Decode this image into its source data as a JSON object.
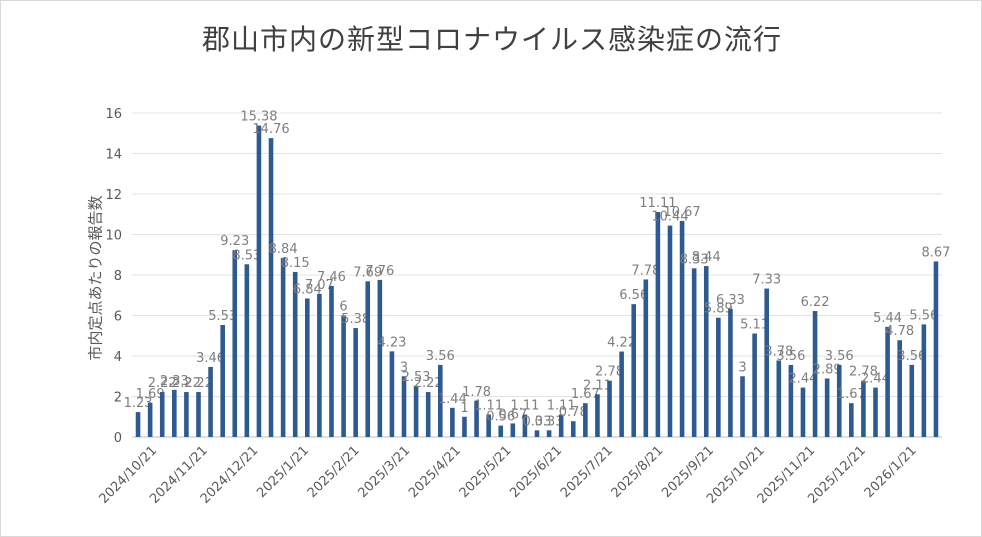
{
  "chart_data": {
    "type": "bar",
    "title": "郡山市内の新型コロナウイルス感染症の流行",
    "xlabel": "",
    "ylabel": "市内定点あたりの報告数",
    "ylim": [
      0,
      16
    ],
    "y_ticks": [
      0,
      2,
      4,
      6,
      8,
      10,
      12,
      14,
      16
    ],
    "grid": true,
    "bar_color": "#2e5a92",
    "x_tick_labels": [
      "2024/10/21",
      "2024/11/21",
      "2024/12/21",
      "2025/1/21",
      "2025/2/21",
      "2025/3/21",
      "2025/4/21",
      "2025/5/21",
      "2025/6/21",
      "2025/7/21",
      "2025/8/21",
      "2025/9/21",
      "2025/10/21",
      "2025/11/21",
      "2025/12/21",
      "2026/1/21"
    ],
    "values": [
      1.23,
      1.69,
      2.22,
      2.33,
      2.22,
      2.22,
      3.46,
      5.53,
      9.23,
      8.53,
      15.38,
      14.76,
      8.84,
      8.15,
      6.84,
      7.07,
      7.46,
      6,
      5.38,
      7.69,
      7.76,
      4.23,
      3,
      2.53,
      2.22,
      3.56,
      1.44,
      1,
      1.78,
      1.11,
      0.56,
      0.67,
      1.11,
      0.33,
      0.33,
      1.11,
      0.78,
      1.67,
      2.11,
      2.78,
      4.22,
      6.56,
      7.78,
      11.11,
      10.44,
      10.67,
      8.33,
      8.44,
      5.89,
      6.33,
      3,
      5.11,
      7.33,
      3.78,
      3.56,
      2.44,
      6.22,
      2.89,
      3.56,
      1.67,
      2.78,
      2.44,
      5.44,
      4.78,
      3.56,
      5.56,
      8.67
    ],
    "data_labels": [
      "1.23",
      "1.69",
      "2.22",
      "2.33",
      "2.22",
      "2.22",
      "3.46",
      "5.53",
      "9.23",
      "8.53",
      "15.38",
      "14.76",
      "8.84",
      "8.15",
      "6.84",
      "7.07",
      "7.46",
      "6",
      "5.38",
      "7.69",
      "7.76",
      "4.23",
      "3",
      "2.53",
      "2.22",
      "3.56",
      "1.44",
      "1",
      "1.78",
      "1.11",
      "0.56",
      "0.67",
      "1.11",
      "0.33",
      "0.33",
      "1.11",
      "0.78",
      "1.67",
      "2.11",
      "2.78",
      "4.22",
      "6.56",
      "7.78",
      "11.11",
      "10.44",
      "10.67",
      "8.33",
      "8.44",
      "5.89",
      "6.33",
      "3",
      "5.11",
      "7.33",
      "3.78",
      "3.56",
      "2.44",
      "6.22",
      "2.89",
      "3.56",
      "1.67",
      "2.78",
      "2.44",
      "5.44",
      "4.78",
      "3.56",
      "5.56",
      "8.67"
    ]
  }
}
